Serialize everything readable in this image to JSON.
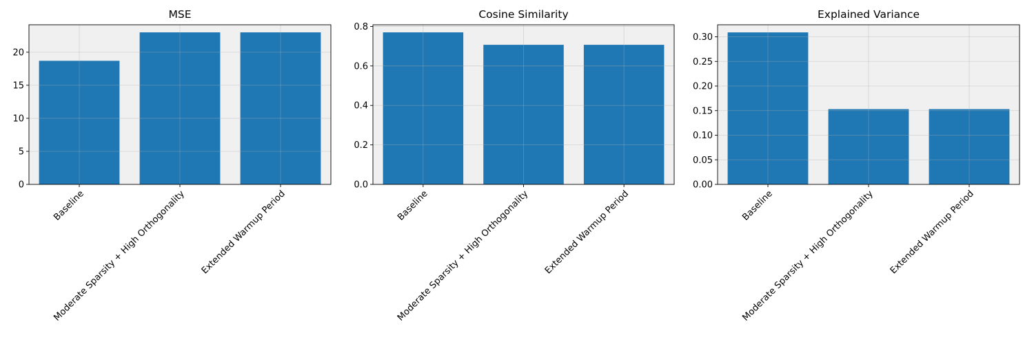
{
  "chart_data": [
    {
      "type": "bar",
      "title": "MSE",
      "categories": [
        "Baseline",
        "Moderate Sparsity + High Orthogonality",
        "Extended Warmup Period"
      ],
      "values": [
        18.7,
        23.0,
        23.0
      ],
      "ylim": [
        0,
        24.15
      ],
      "yticks": [
        0,
        5,
        10,
        15,
        20
      ],
      "ytick_labels": [
        "0",
        "5",
        "10",
        "15",
        "20"
      ],
      "grid": true
    },
    {
      "type": "bar",
      "title": "Cosine Similarity",
      "categories": [
        "Baseline",
        "Moderate Sparsity + High Orthogonality",
        "Extended Warmup Period"
      ],
      "values": [
        0.77,
        0.707,
        0.707
      ],
      "ylim": [
        0,
        0.8085
      ],
      "yticks": [
        0,
        0.2,
        0.4,
        0.6,
        0.8
      ],
      "ytick_labels": [
        "0.0",
        "0.2",
        "0.4",
        "0.6",
        "0.8"
      ],
      "grid": true
    },
    {
      "type": "bar",
      "title": "Explained Variance",
      "categories": [
        "Baseline",
        "Moderate Sparsity + High Orthogonality",
        "Extended Warmup Period"
      ],
      "values": [
        0.309,
        0.153,
        0.153
      ],
      "ylim": [
        0,
        0.3245
      ],
      "yticks": [
        0,
        0.05,
        0.1,
        0.15,
        0.2,
        0.25,
        0.3
      ],
      "ytick_labels": [
        "0.00",
        "0.05",
        "0.10",
        "0.15",
        "0.20",
        "0.25",
        "0.30"
      ],
      "grid": true
    }
  ],
  "colors": {
    "bar": "#1f77b4",
    "axes_background": "#f0f0f0",
    "grid": "#d8d8d8"
  }
}
